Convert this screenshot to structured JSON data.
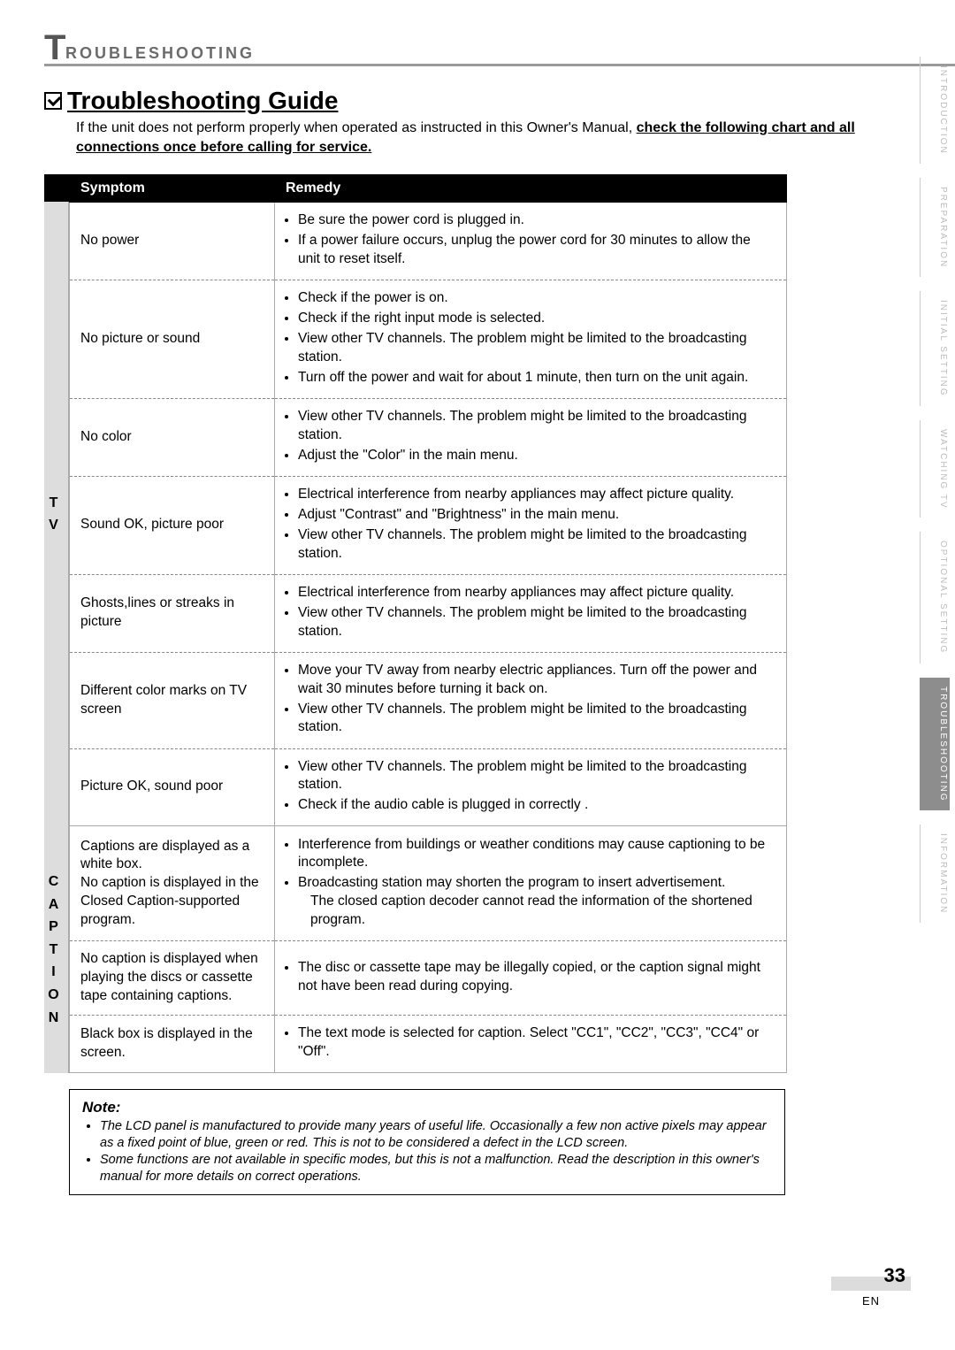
{
  "section_header": {
    "first_letter": "T",
    "rest": "ROUBLESHOOTING"
  },
  "guide": {
    "title": "Troubleshooting Guide",
    "intro_prefix": "If the unit does not perform properly when operated as instructed in this Owner's Manual, ",
    "intro_bold": "check the following chart and all connections once before calling for service."
  },
  "table": {
    "headers": {
      "symptom": "Symptom",
      "remedy": "Remedy"
    },
    "categories": {
      "tv": {
        "label": "T\nV",
        "row_count": 7
      },
      "caption": {
        "label": "C\nA\nP\nT\nI\nO\nN",
        "row_count": 3
      }
    },
    "rows": [
      {
        "symptom": "No power",
        "remedies": [
          "Be sure the power cord is plugged in.",
          "If a power failure occurs, unplug the power cord for 30 minutes to allow the unit to reset itself."
        ]
      },
      {
        "symptom": "No picture or sound",
        "remedies": [
          "Check if the power is on.",
          "Check if the right input mode is selected.",
          "View other TV channels. The problem might be limited to the broadcasting station.",
          "Turn off the power and wait for about 1 minute, then turn on the unit again."
        ]
      },
      {
        "symptom": "No color",
        "remedies": [
          "View other TV channels. The problem might be limited to the broadcasting station.",
          "Adjust the \"Color\" in the main menu."
        ]
      },
      {
        "symptom": "Sound OK, picture poor",
        "remedies": [
          "Electrical interference from nearby appliances may affect picture quality.",
          "Adjust \"Contrast\" and \"Brightness\" in the main menu.",
          "View other TV channels. The problem might be limited to the broadcasting station."
        ]
      },
      {
        "symptom": "Ghosts,lines or streaks in picture",
        "remedies": [
          "Electrical interference from nearby appliances may affect picture quality.",
          "View other TV channels. The problem might be limited to the broadcasting station."
        ]
      },
      {
        "symptom": "Different color marks on TV screen",
        "remedies": [
          "Move your TV away from nearby electric appliances. Turn off the power and wait 30 minutes before turning it back on.",
          "View other TV channels. The problem might be limited to the broadcasting station."
        ]
      },
      {
        "symptom": "Picture OK, sound poor",
        "remedies": [
          "View other TV channels. The problem might be limited to the broadcasting station.",
          "Check if the audio cable is plugged in correctly ."
        ],
        "solid": true
      },
      {
        "symptom": "Captions are displayed as a white box.\nNo caption is displayed in the Closed Caption-supported program.",
        "remedies_custom": "<ul class=\"bullets\"><li>Interference from buildings or weather conditions may cause captioning to be incomplete.</li><li>Broadcasting station may shorten the program to insert advertisement.<span class=\"indent-line\">The closed caption decoder cannot read the information of the shortened program.</span></li></ul>"
      },
      {
        "symptom": "No caption is displayed when playing the discs or cassette tape containing captions.",
        "remedies": [
          "The disc or cassette tape may be illegally copied, or the caption signal might not have been read during copying."
        ]
      },
      {
        "symptom": "Black box is displayed in the screen.",
        "remedies": [
          "The text mode is selected for caption. Select \"CC1\", \"CC2\", \"CC3\", \"CC4\" or \"Off\"."
        ],
        "solid": true
      }
    ]
  },
  "note": {
    "title": "Note:",
    "items": [
      "The LCD panel is manufactured to provide many years of useful life.  Occasionally a few non active pixels may appear as a fixed point of blue, green or red.  This is not to be considered a defect in the LCD screen.",
      "Some functions are not available in specific modes, but this is not a malfunction.  Read the description in this owner's manual for more details on correct operations."
    ]
  },
  "tabs": [
    {
      "label": "INTRODUCTION",
      "active": false
    },
    {
      "label": "PREPARATION",
      "active": false
    },
    {
      "label": "INITIAL SETTING",
      "active": false
    },
    {
      "label": "WATCHING TV",
      "active": false
    },
    {
      "label": "OPTIONAL SETTING",
      "active": false
    },
    {
      "label": "TROUBLESHOOTING",
      "active": true
    },
    {
      "label": "INFORMATION",
      "active": false
    }
  ],
  "footer": {
    "page": "33",
    "lang": "EN"
  },
  "colors": {
    "rule": "#9a9a9a",
    "header_text": "#6b6b6b",
    "tab_inactive": "#bcbcbc",
    "tab_active_bg": "#8d8d8d",
    "cat_bg": "#dddddd"
  }
}
